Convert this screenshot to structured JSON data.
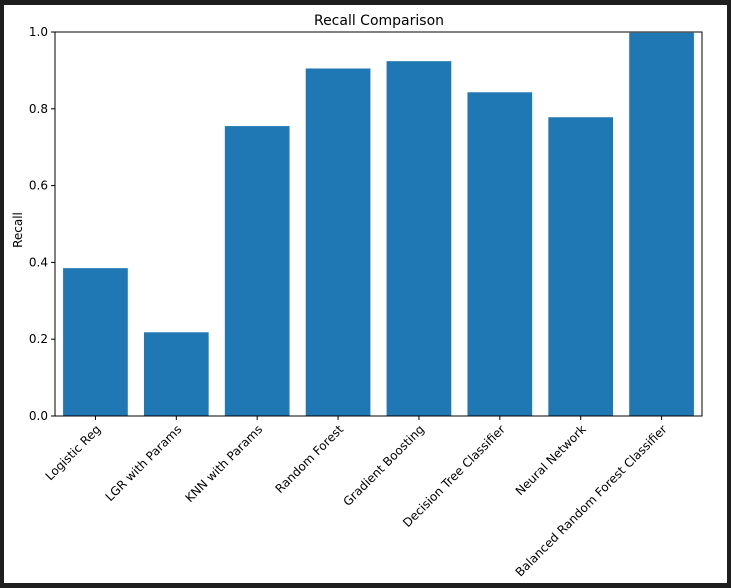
{
  "chart_data": {
    "type": "bar",
    "title": "Recall Comparison",
    "xlabel": "",
    "ylabel": "Recall",
    "categories": [
      "Logistic Reg",
      "LGR with Params",
      "KNN with Params",
      "Random Forest",
      "Gradient Boosting",
      "Decision Tree Classifier",
      "Neural Network",
      "Balanced Random Forest Classifier"
    ],
    "values": [
      0.385,
      0.218,
      0.755,
      0.905,
      0.924,
      0.843,
      0.778,
      0.998
    ],
    "ylim": [
      0,
      1.0
    ],
    "yticks": [
      "0.0",
      "0.2",
      "0.4",
      "0.6",
      "0.8",
      "1.0"
    ],
    "bar_color": "#1f77b4",
    "grid": false,
    "legend": "none"
  }
}
